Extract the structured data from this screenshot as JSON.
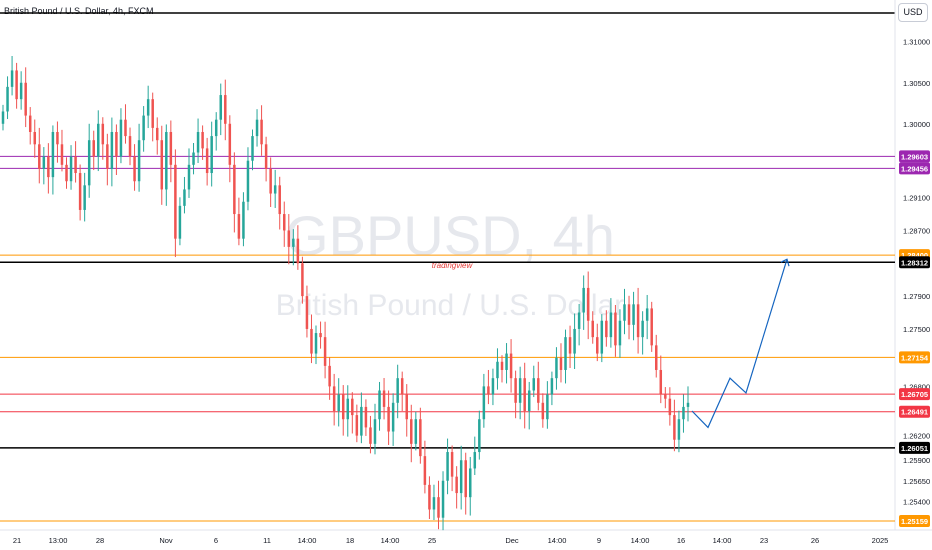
{
  "header": {
    "title": "British Pound / U.S. Dollar, 4h, FXCM",
    "currency": "USD"
  },
  "watermark": {
    "symbol": "GBPUSD, 4h",
    "description": "British Pound / U.S. Dollar",
    "brand": "tradingview"
  },
  "colors": {
    "up": "#26a69a",
    "down": "#ef5350",
    "purple": "#9c27b0",
    "orange": "#ff9800",
    "red": "#f23645",
    "black": "#000000",
    "blue": "#1565c0"
  },
  "chart_data": {
    "type": "candlestick",
    "symbol": "GBPUSD",
    "timeframe": "4h",
    "source": "FXCM",
    "ylim": [
      1.2505,
      1.3135
    ],
    "price_ticks": [
      "1.31000",
      "1.30500",
      "1.30000",
      "1.29100",
      "1.28700",
      "1.27900",
      "1.27500",
      "1.26800",
      "1.26200",
      "1.25900",
      "1.25650",
      "1.25400"
    ],
    "time_ticks": [
      "21",
      "13:00",
      "28",
      "Nov",
      "6",
      "11",
      "14:00",
      "18",
      "14:00",
      "25",
      "Dec",
      "14:00",
      "9",
      "14:00",
      "16",
      "14:00",
      "23",
      "26",
      "2025"
    ],
    "levels": [
      {
        "price": 1.29603,
        "label": "1.29603",
        "color": "purple"
      },
      {
        "price": 1.29456,
        "label": "1.29456",
        "color": "purple"
      },
      {
        "price": 1.284,
        "label": "1.28400",
        "color": "orange"
      },
      {
        "price": 1.28312,
        "label": "1.28312",
        "color": "black"
      },
      {
        "price": 1.27154,
        "label": "1.27154",
        "color": "orange"
      },
      {
        "price": 1.26705,
        "label": "1.26705",
        "color": "red"
      },
      {
        "price": 1.26491,
        "label": "1.26491",
        "color": "red"
      },
      {
        "price": 1.26051,
        "label": "1.26051",
        "color": "black"
      },
      {
        "price": 1.25159,
        "label": "1.25159",
        "color": "orange"
      }
    ],
    "closes": [
      1.3015,
      1.3045,
      1.3065,
      1.303,
      1.305,
      1.301,
      1.299,
      1.2975,
      1.2945,
      1.296,
      1.2935,
      1.299,
      1.2975,
      1.295,
      1.293,
      1.296,
      1.294,
      1.2895,
      1.2925,
      1.298,
      1.296,
      1.3,
      1.2975,
      1.2945,
      1.299,
      1.296,
      1.3005,
      1.2985,
      1.296,
      1.293,
      1.298,
      1.301,
      1.303,
      1.2995,
      1.298,
      1.292,
      1.299,
      1.295,
      1.286,
      1.29,
      1.292,
      1.295,
      1.2965,
      1.299,
      1.297,
      1.294,
      1.2985,
      1.3005,
      1.3035,
      1.3,
      1.295,
      1.289,
      1.286,
      1.2905,
      1.2955,
      1.2985,
      1.3005,
      1.2975,
      1.2945,
      1.2915,
      1.2925,
      1.289,
      1.287,
      1.285,
      1.286,
      1.283,
      1.279,
      1.275,
      1.272,
      1.2745,
      1.274,
      1.2705,
      1.268,
      1.265,
      1.267,
      1.264,
      1.2665,
      1.2645,
      1.262,
      1.2655,
      1.263,
      1.261,
      1.264,
      1.2675,
      1.2655,
      1.2625,
      1.266,
      1.269,
      1.267,
      1.264,
      1.261,
      1.264,
      1.2595,
      1.256,
      1.253,
      1.2545,
      1.252,
      1.2565,
      1.26,
      1.257,
      1.255,
      1.259,
      1.2545,
      1.258,
      1.26,
      1.264,
      1.268,
      1.267,
      1.269,
      1.271,
      1.27,
      1.272,
      1.269,
      1.266,
      1.269,
      1.265,
      1.2675,
      1.269,
      1.266,
      1.264,
      1.267,
      1.269,
      1.2715,
      1.27,
      1.274,
      1.272,
      1.275,
      1.277,
      1.28,
      1.276,
      1.274,
      1.272,
      1.276,
      1.274,
      1.277,
      1.273,
      1.276,
      1.278,
      1.2755,
      1.278,
      1.274,
      1.276,
      1.2775,
      1.273,
      1.27,
      1.267,
      1.2665,
      1.2645,
      1.2615,
      1.264,
      1.2655,
      1.266
    ],
    "projection": [
      {
        "time": "2024-12-18",
        "price": 1.265
      },
      {
        "time": "2024-12-19",
        "price": 1.263
      },
      {
        "time": "2024-12-20",
        "price": 1.269
      },
      {
        "time": "2024-12-21",
        "price": 1.2672
      },
      {
        "time": "2024-12-22",
        "price": 1.2835
      }
    ]
  }
}
